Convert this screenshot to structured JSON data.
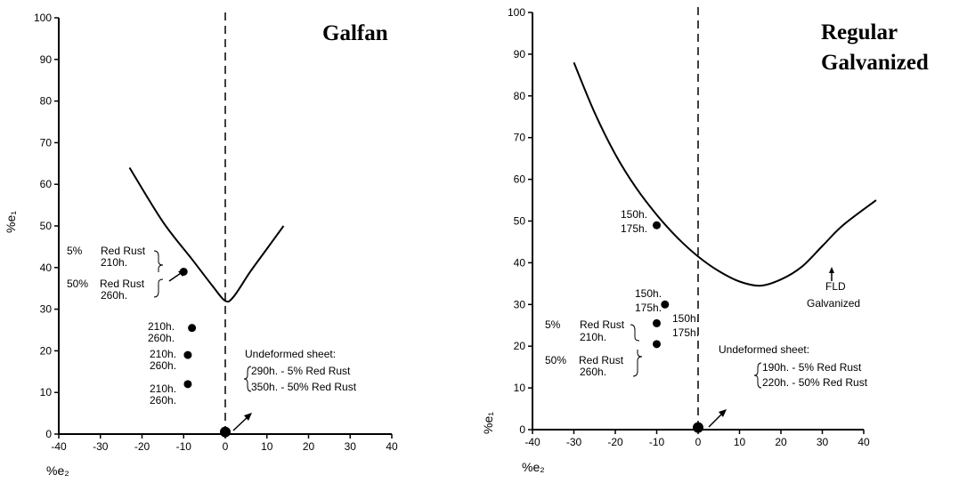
{
  "chart_data": [
    {
      "type": "line",
      "title": "Galfan",
      "xlabel": "%e₂",
      "ylabel": "%e₁",
      "xlim": [
        -40,
        40
      ],
      "ylim": [
        0,
        100
      ],
      "x_ticks": [
        -40,
        -30,
        -20,
        -10,
        0,
        10,
        20,
        30,
        40
      ],
      "y_ticks": [
        0,
        10,
        20,
        30,
        40,
        50,
        60,
        70,
        80,
        90,
        100
      ],
      "series": [
        {
          "values": [
            [
              -23,
              64
            ],
            [
              -15,
              51
            ],
            [
              -8,
              42
            ],
            [
              -3,
              35.5
            ],
            [
              0,
              32
            ],
            [
              2,
              33
            ],
            [
              6,
              39
            ],
            [
              10,
              44.5
            ],
            [
              14,
              50
            ]
          ]
        }
      ],
      "points": [
        {
          "x": -10,
          "y": 39
        },
        {
          "x": -8,
          "y": 25.5
        },
        {
          "x": -9,
          "y": 19
        },
        {
          "x": -9,
          "y": 12
        },
        {
          "x": 0,
          "y": 0.5
        }
      ],
      "annotations": {
        "left_top_pct": "5%",
        "left_top_text": "Red Rust",
        "left_top_hours": "210h.",
        "left_bottom_pct": "50%",
        "left_bottom_text": "Red Rust",
        "left_bottom_hours": "260h.",
        "p2_a": "210h.",
        "p2_b": "260h.",
        "p3_a": "210h.",
        "p3_b": "260h.",
        "p4_a": "210h.",
        "p4_b": "260h.",
        "undeformed": "Undeformed sheet:",
        "undeformed_1": "290h. - 5% Red Rust",
        "undeformed_2": "350h. - 50% Red Rust"
      }
    },
    {
      "type": "line",
      "title_line1": "Regular",
      "title_line2": "Galvanized",
      "xlabel": "%e₂",
      "ylabel": "%e₁",
      "xlim": [
        -40,
        40
      ],
      "ylim": [
        0,
        100
      ],
      "x_ticks": [
        -40,
        -30,
        -20,
        -10,
        0,
        10,
        20,
        30,
        40
      ],
      "y_ticks": [
        0,
        10,
        20,
        30,
        40,
        50,
        60,
        70,
        80,
        90,
        100
      ],
      "series": [
        {
          "values": [
            [
              -30,
              88
            ],
            [
              -25,
              76
            ],
            [
              -20,
              66
            ],
            [
              -15,
              58
            ],
            [
              -10,
              51.5
            ],
            [
              -5,
              46
            ],
            [
              0,
              41.5
            ],
            [
              5,
              38
            ],
            [
              10,
              35.5
            ],
            [
              15,
              34.5
            ],
            [
              20,
              36
            ],
            [
              25,
              39
            ],
            [
              30,
              44
            ],
            [
              35,
              49
            ],
            [
              43,
              55
            ]
          ]
        }
      ],
      "points": [
        {
          "x": -10,
          "y": 49
        },
        {
          "x": -8,
          "y": 30
        },
        {
          "x": -10,
          "y": 25.5
        },
        {
          "x": -10,
          "y": 20.5
        },
        {
          "x": 0,
          "y": 0.5
        }
      ],
      "annotations": {
        "p1_a": "150h.",
        "p1_b": "175h.",
        "p2_a": "150h.",
        "p2_b": "175h.",
        "p3_a": "150h.",
        "p3_b": "175h.",
        "left_top_pct": "5%",
        "left_top_text": "Red Rust",
        "left_top_hours": "210h.",
        "left_bottom_pct": "50%",
        "left_bottom_text": "Red Rust",
        "left_bottom_hours": "260h.",
        "fld_1": "FLD",
        "fld_2": "Galvanized",
        "undeformed": "Undeformed sheet:",
        "undeformed_1": "190h. - 5% Red Rust",
        "undeformed_2": "220h. - 50% Red Rust"
      }
    }
  ]
}
